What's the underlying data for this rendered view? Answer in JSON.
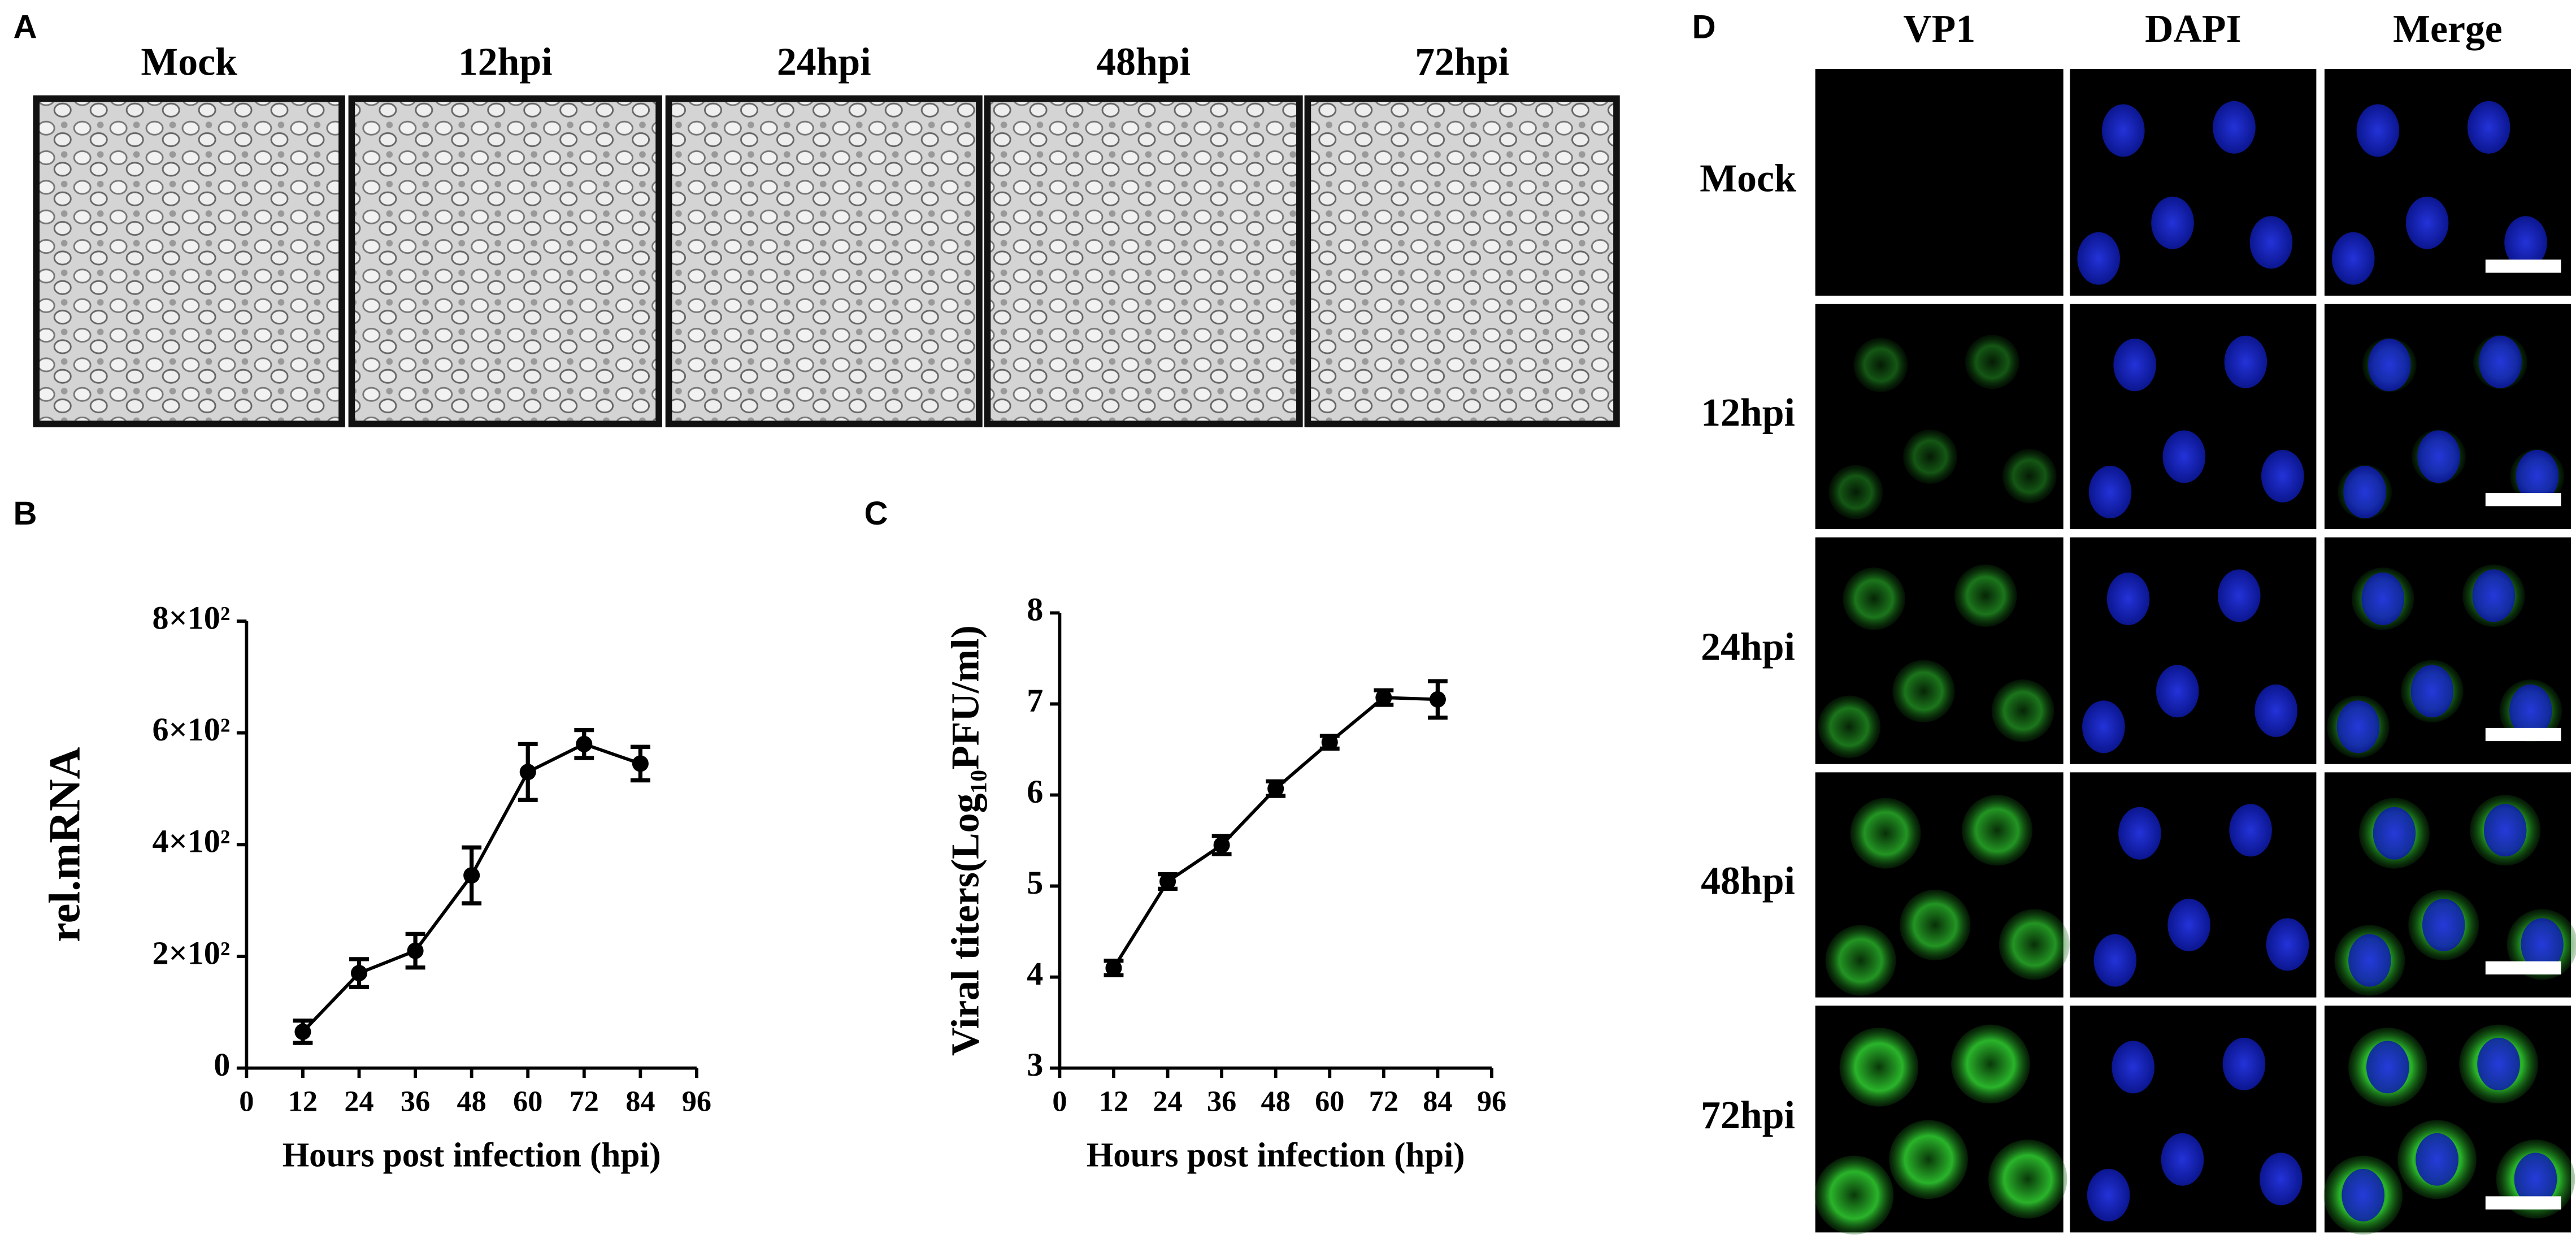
{
  "panel_a": {
    "label": "A",
    "columns": [
      "Mock",
      "12hpi",
      "24hpi",
      "48hpi",
      "72hpi"
    ]
  },
  "panel_d": {
    "label": "D",
    "columns": [
      "VP1",
      "DAPI",
      "Merge"
    ],
    "rows": [
      "Mock",
      "12hpi",
      "24hpi",
      "48hpi",
      "72hpi"
    ]
  },
  "chart_data": [
    {
      "type": "line",
      "label": "B",
      "ylabel": "rel.mRNA",
      "xlabel": "Hours post infection (hpi)",
      "x": [
        12,
        24,
        36,
        48,
        60,
        72,
        84
      ],
      "values": [
        65,
        170,
        210,
        345,
        530,
        580,
        545
      ],
      "errors": [
        20,
        25,
        30,
        50,
        50,
        25,
        30
      ],
      "color": "#000000",
      "xlim": [
        0,
        96
      ],
      "xticks": [
        0,
        12,
        24,
        36,
        48,
        60,
        72,
        84,
        96
      ],
      "ylim": [
        0,
        800
      ],
      "yticks": [
        0,
        {
          "value": 200,
          "label": "2×10²"
        },
        {
          "value": 400,
          "label": "4×10²"
        },
        {
          "value": 600,
          "label": "6×10²"
        },
        {
          "value": 800,
          "label": "8×10²"
        }
      ]
    },
    {
      "type": "line",
      "label": "C",
      "ylabel": "Viral titers(Log₁₀PFU/ml)",
      "xlabel": "Hours post infection (hpi)",
      "x": [
        12,
        24,
        36,
        48,
        60,
        72,
        84
      ],
      "values": [
        4.1,
        5.05,
        5.45,
        6.07,
        6.58,
        7.07,
        7.05
      ],
      "errors": [
        0.08,
        0.08,
        0.1,
        0.08,
        0.07,
        0.08,
        0.2
      ],
      "color": "#000000",
      "xlim": [
        0,
        96
      ],
      "xticks": [
        0,
        12,
        24,
        36,
        48,
        60,
        72,
        84,
        96
      ],
      "ylim": [
        3,
        8
      ],
      "yticks": [
        3,
        4,
        5,
        6,
        7,
        8
      ]
    }
  ]
}
